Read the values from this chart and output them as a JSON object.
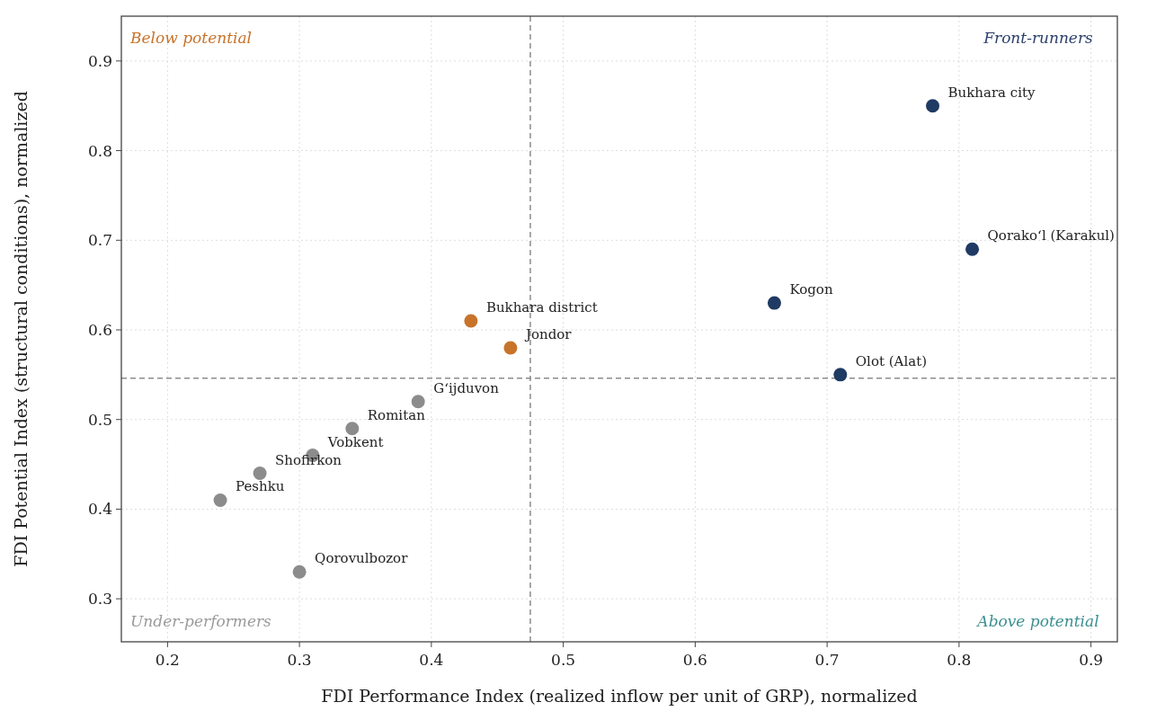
{
  "chart_data": {
    "type": "scatter",
    "xlabel": "FDI Performance Index (realized inflow per unit of GRP), normalized",
    "ylabel": "FDI Potential Index (structural conditions), normalized",
    "xlim": [
      0.165,
      0.92
    ],
    "xticks": [
      0.2,
      0.3,
      0.4,
      0.5,
      0.6,
      0.7,
      0.8,
      0.9
    ],
    "ylim": [
      0.252,
      0.95
    ],
    "yticks": [
      0.3,
      0.4,
      0.5,
      0.6,
      0.7,
      0.8,
      0.9
    ],
    "grid": true,
    "marker": "circle",
    "series": [
      {
        "color": "#1f3a63",
        "x": [
          0.78,
          0.81,
          0.66,
          0.71
        ],
        "values": [
          0.85,
          0.69,
          0.63,
          0.55
        ]
      },
      {
        "color": "#c8732a",
        "x": [
          0.43,
          0.46
        ],
        "values": [
          0.61,
          0.58
        ]
      },
      {
        "color": "#8c8c8c",
        "x": [
          0.39,
          0.34,
          0.31,
          0.27,
          0.24,
          0.3
        ],
        "values": [
          0.52,
          0.49,
          0.46,
          0.44,
          0.41,
          0.33
        ]
      }
    ],
    "ref_lines": [
      {
        "axis": "x",
        "value": 0.475,
        "color": "#8c8c8c",
        "line_style": "dashed"
      },
      {
        "axis": "y",
        "value": 0.546,
        "color": "#8c8c8c",
        "line_style": "dashed"
      }
    ],
    "annotations": [
      "Below potential",
      "Front-runners",
      "Under-performers",
      "Above potential",
      {
        "text": "Bukhara city",
        "x": 0.78,
        "y": 0.85
      },
      {
        "text": "Qorako‘l (Karakul)",
        "x": 0.81,
        "y": 0.69
      },
      {
        "text": "Kogon",
        "x": 0.66,
        "y": 0.63
      },
      {
        "text": "Olot (Alat)",
        "x": 0.71,
        "y": 0.55
      },
      {
        "text": "Bukhara district",
        "x": 0.43,
        "y": 0.61
      },
      {
        "text": "Jondor",
        "x": 0.46,
        "y": 0.58
      },
      {
        "text": "G‘ijduvon",
        "x": 0.39,
        "y": 0.52
      },
      {
        "text": "Romitan",
        "x": 0.34,
        "y": 0.49
      },
      {
        "text": "Vobkent",
        "x": 0.31,
        "y": 0.46
      },
      {
        "text": "Shofirkon",
        "x": 0.27,
        "y": 0.44
      },
      {
        "text": "Peshku",
        "x": 0.24,
        "y": 0.41
      },
      {
        "text": "Qorovulbozor",
        "x": 0.3,
        "y": 0.33
      }
    ]
  }
}
